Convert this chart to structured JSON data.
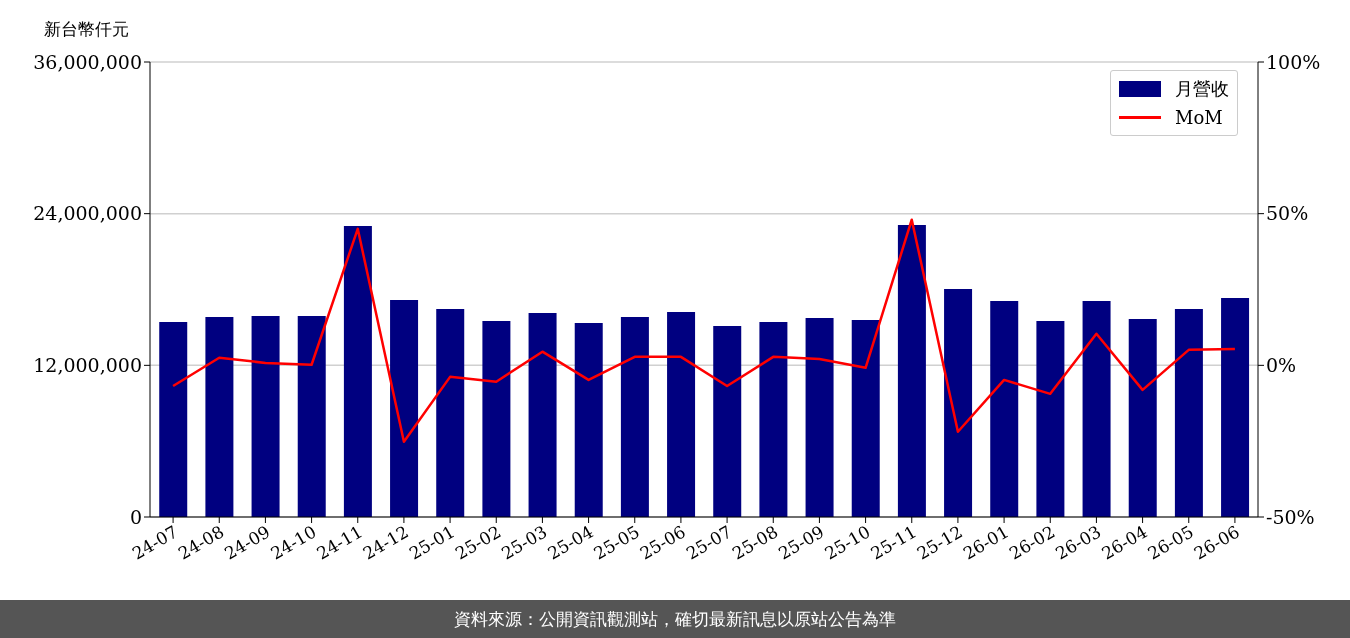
{
  "chart_data": {
    "type": "bar",
    "ylabel": "新台幣仟元",
    "categories": [
      "24-07",
      "24-08",
      "24-09",
      "24-10",
      "24-11",
      "24-12",
      "25-01",
      "25-02",
      "25-03",
      "25-04",
      "25-05",
      "25-06",
      "25-07",
      "25-08",
      "25-09",
      "25-10",
      "25-11",
      "25-12",
      "26-01",
      "26-02",
      "26-03",
      "26-04",
      "26-05",
      "26-06"
    ],
    "series": [
      {
        "name": "月營收",
        "color": "#000080",
        "values": [
          15430000,
          15820000,
          15900000,
          15900000,
          23020000,
          17170000,
          16460000,
          15500000,
          16140000,
          15350000,
          15820000,
          16220000,
          15110000,
          15430000,
          15740000,
          15590000,
          23100000,
          18040000,
          17090000,
          15500000,
          17090000,
          15660000,
          16460000,
          17330000
        ]
      },
      {
        "name": "MoM",
        "type": "line",
        "axis": "y2",
        "color": "#ff0000",
        "values": [
          -6.8,
          2.5,
          0.8,
          0.2,
          45,
          -25.2,
          -3.8,
          -5.4,
          4.5,
          -4.8,
          2.8,
          2.8,
          -6.8,
          2.8,
          2.1,
          -0.8,
          48,
          -21.9,
          -4.8,
          -9.4,
          10.4,
          -8.1,
          5.1,
          5.4
        ]
      }
    ],
    "ylim": [
      0,
      36000000
    ],
    "yticks": [
      0,
      {
        "value": 12000000,
        "label": "12,000,000"
      },
      {
        "value": 24000000,
        "label": "24,000,000"
      },
      {
        "value": 36000000,
        "label": "36,000,000"
      }
    ],
    "y2lim": [
      -50,
      100
    ],
    "y2ticks": [
      {
        "value": -50,
        "label": "-50%"
      },
      {
        "value": 0,
        "label": "0%"
      },
      {
        "value": 50,
        "label": "50%"
      },
      {
        "value": 100,
        "label": "100%"
      }
    ],
    "grid": "y",
    "legend": "top right",
    "annotations": [
      "資料來源：公開資訊觀測站，確切最新訊息以原站公告為準"
    ]
  }
}
